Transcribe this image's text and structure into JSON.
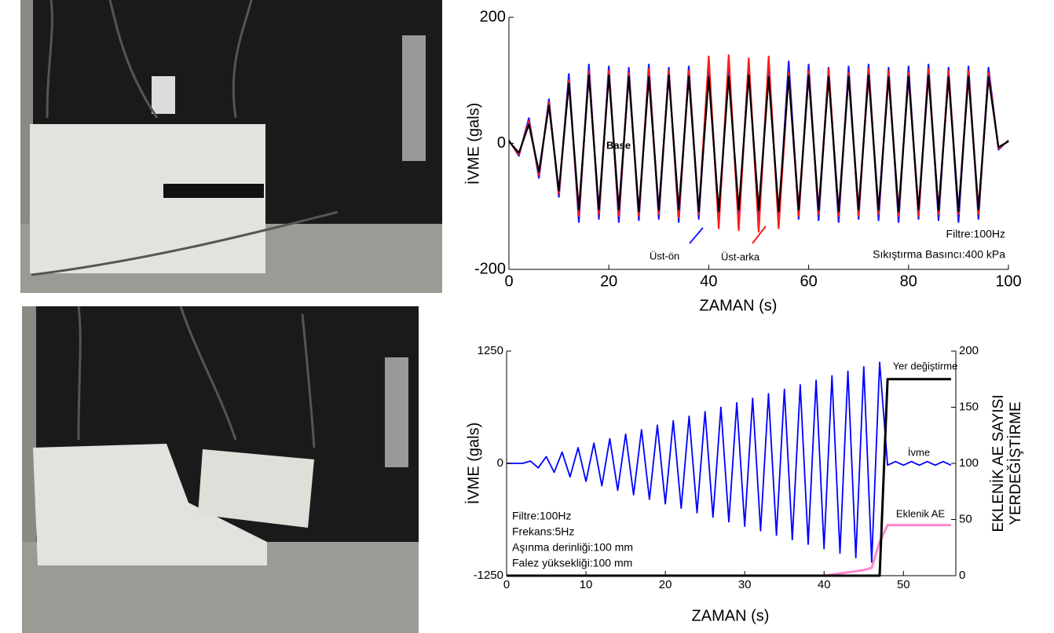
{
  "chart_data": [
    {
      "type": "line",
      "xlabel": "ZAMAN (s)",
      "ylabel": "İVME (gals)",
      "xlim": [
        0,
        100
      ],
      "xticks": [
        0,
        20,
        40,
        60,
        80,
        100
      ],
      "ylim": [
        -200,
        200
      ],
      "yticks": [
        -200,
        0,
        200
      ],
      "annotations": [
        "Filtre:100Hz",
        "Sıkıştırma Basıncı:400 kPa"
      ],
      "x": [
        0,
        2,
        4,
        6,
        8,
        10,
        12,
        14,
        16,
        18,
        20,
        22,
        24,
        26,
        28,
        30,
        32,
        34,
        36,
        38,
        40,
        42,
        44,
        46,
        48,
        50,
        52,
        54,
        56,
        58,
        60,
        62,
        64,
        66,
        68,
        70,
        72,
        74,
        76,
        78,
        80,
        82,
        84,
        86,
        88,
        90,
        92,
        94,
        96,
        98,
        100
      ],
      "series": [
        {
          "name": "Üst-ön",
          "color": "#1a1aff",
          "values": [
            5,
            -20,
            40,
            -55,
            70,
            -85,
            110,
            -125,
            125,
            -120,
            122,
            -125,
            120,
            -122,
            125,
            -120,
            120,
            -125,
            122,
            -120,
            125,
            -125,
            120,
            -122,
            125,
            -128,
            122,
            -125,
            130,
            -120,
            125,
            -122,
            120,
            -125,
            122,
            -120,
            125,
            -122,
            120,
            -125,
            122,
            -120,
            125,
            -122,
            120,
            -125,
            122,
            -120,
            120,
            -10,
            5
          ]
        },
        {
          "name": "Üst-arka",
          "color": "#ff1a1a",
          "values": [
            4,
            -18,
            35,
            -50,
            65,
            -80,
            100,
            -115,
            115,
            -112,
            115,
            -115,
            112,
            -115,
            118,
            -112,
            115,
            -118,
            115,
            -112,
            138,
            -135,
            140,
            -138,
            135,
            -140,
            138,
            -135,
            112,
            -115,
            115,
            -112,
            118,
            -115,
            112,
            -115,
            118,
            -112,
            115,
            -115,
            112,
            -115,
            118,
            -112,
            115,
            -112,
            115,
            -112,
            112,
            -8,
            4
          ]
        },
        {
          "name": "Base",
          "color": "#000000",
          "values": [
            3,
            -15,
            30,
            -45,
            60,
            -75,
            95,
            -105,
            108,
            -105,
            108,
            -105,
            106,
            -108,
            105,
            -106,
            108,
            -105,
            106,
            -108,
            105,
            -108,
            106,
            -105,
            108,
            -106,
            105,
            -108,
            106,
            -105,
            108,
            -106,
            105,
            -108,
            106,
            -105,
            108,
            -106,
            105,
            -108,
            106,
            -105,
            108,
            -106,
            105,
            -108,
            106,
            -105,
            105,
            -6,
            3
          ]
        }
      ]
    },
    {
      "type": "line",
      "xlabel": "ZAMAN (s)",
      "ylabel": "İVME (gals)",
      "y2label": [
        "EKLENİK AE SAYISI",
        "YERDEĞİŞTİRME"
      ],
      "xlim": [
        0,
        56.6
      ],
      "xticks": [
        0,
        10,
        20,
        30,
        40,
        50
      ],
      "ylim": [
        -1250,
        1250
      ],
      "yticks": [
        -1250,
        0,
        1250
      ],
      "y2lim": [
        0,
        200
      ],
      "y2ticks": [
        0,
        50,
        100,
        150,
        200
      ],
      "annotations": [
        "Filtre:100Hz",
        "Frekans:5Hz",
        "Aşınma derinliği:100 mm",
        "Falez yüksekliği:100 mm"
      ],
      "x": [
        0,
        1,
        2,
        3,
        4,
        5,
        6,
        7,
        8,
        9,
        10,
        11,
        12,
        13,
        14,
        15,
        16,
        17,
        18,
        19,
        20,
        21,
        22,
        23,
        24,
        25,
        26,
        27,
        28,
        29,
        30,
        31,
        32,
        33,
        34,
        35,
        36,
        37,
        38,
        39,
        40,
        41,
        42,
        43,
        44,
        45,
        46,
        47,
        48,
        49,
        50,
        51,
        52,
        53,
        54,
        55,
        56
      ],
      "series": [
        {
          "name": "İvme",
          "color": "#0000ff",
          "values": [
            0,
            0,
            0,
            25,
            -50,
            75,
            -100,
            125,
            -150,
            175,
            -200,
            225,
            -250,
            275,
            -300,
            325,
            -350,
            375,
            -400,
            425,
            -450,
            475,
            -500,
            525,
            -550,
            575,
            -600,
            625,
            -650,
            675,
            -700,
            725,
            -750,
            775,
            -800,
            825,
            -850,
            875,
            -900,
            925,
            -950,
            975,
            -1000,
            1025,
            -1050,
            1075,
            -1100,
            1125,
            -20,
            20,
            -20,
            20,
            -20,
            20,
            -20,
            20,
            -20
          ]
        },
        {
          "name": "Eklenik AE",
          "color": "#ff88cc",
          "axis": "y2",
          "values": [
            0,
            0,
            0,
            0,
            0,
            0,
            0,
            0,
            0,
            0,
            0,
            0,
            0,
            0,
            0,
            0,
            0,
            0,
            0,
            0,
            0,
            0,
            0,
            0,
            0,
            0,
            0,
            0,
            0,
            0,
            0,
            0,
            0,
            0,
            0,
            0,
            0,
            0,
            0,
            0,
            0,
            1,
            2,
            3,
            4,
            5,
            7,
            30,
            45,
            45,
            45,
            45,
            45,
            45,
            45,
            45,
            45
          ]
        },
        {
          "name": "Yer değiştirme",
          "color": "#000000",
          "axis": "y2",
          "values": [
            0,
            0,
            0,
            0,
            0,
            0,
            0,
            0,
            0,
            0,
            0,
            0,
            0,
            0,
            0,
            0,
            0,
            0,
            0,
            0,
            0,
            0,
            0,
            0,
            0,
            0,
            0,
            0,
            0,
            0,
            0,
            0,
            0,
            0,
            0,
            0,
            0,
            0,
            0,
            0,
            0,
            0,
            0,
            0,
            0,
            0,
            0,
            0,
            175,
            175,
            175,
            175,
            175,
            175,
            175,
            175,
            175
          ]
        }
      ]
    }
  ]
}
